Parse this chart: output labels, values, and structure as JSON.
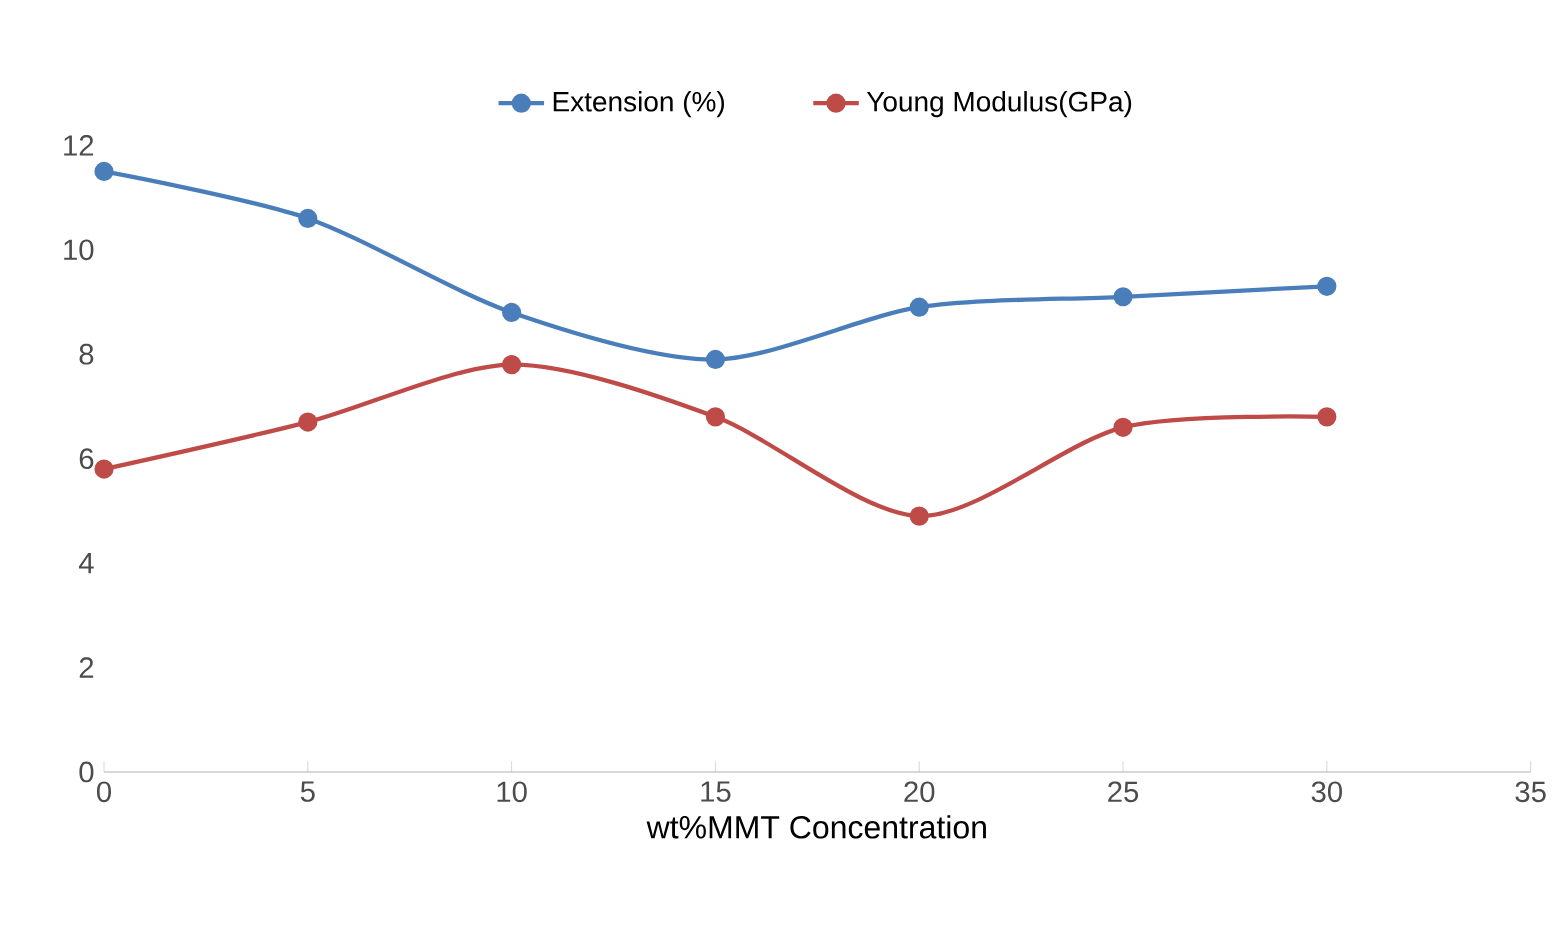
{
  "chart_data": {
    "type": "line",
    "xlabel": "wt%MMT Concentration",
    "x": [
      0,
      5,
      10,
      15,
      20,
      25,
      30
    ],
    "series": [
      {
        "name": "Extension (%)",
        "color": "#4a7ebb",
        "values": [
          11.5,
          10.6,
          8.8,
          7.9,
          8.9,
          9.1,
          9.3
        ]
      },
      {
        "name": "Young Modulus(GPa)",
        "color": "#be4b48",
        "values": [
          5.8,
          6.7,
          7.8,
          6.8,
          4.9,
          6.6,
          6.8
        ]
      }
    ],
    "xlim": [
      0,
      35
    ],
    "xticks": [
      0,
      5,
      10,
      15,
      20,
      25,
      30,
      35
    ],
    "ylim": [
      0,
      12
    ],
    "yticks": [
      0,
      2,
      4,
      6,
      8,
      10,
      12
    ],
    "legend": "top",
    "marker": "circle",
    "line_style": "solid"
  }
}
